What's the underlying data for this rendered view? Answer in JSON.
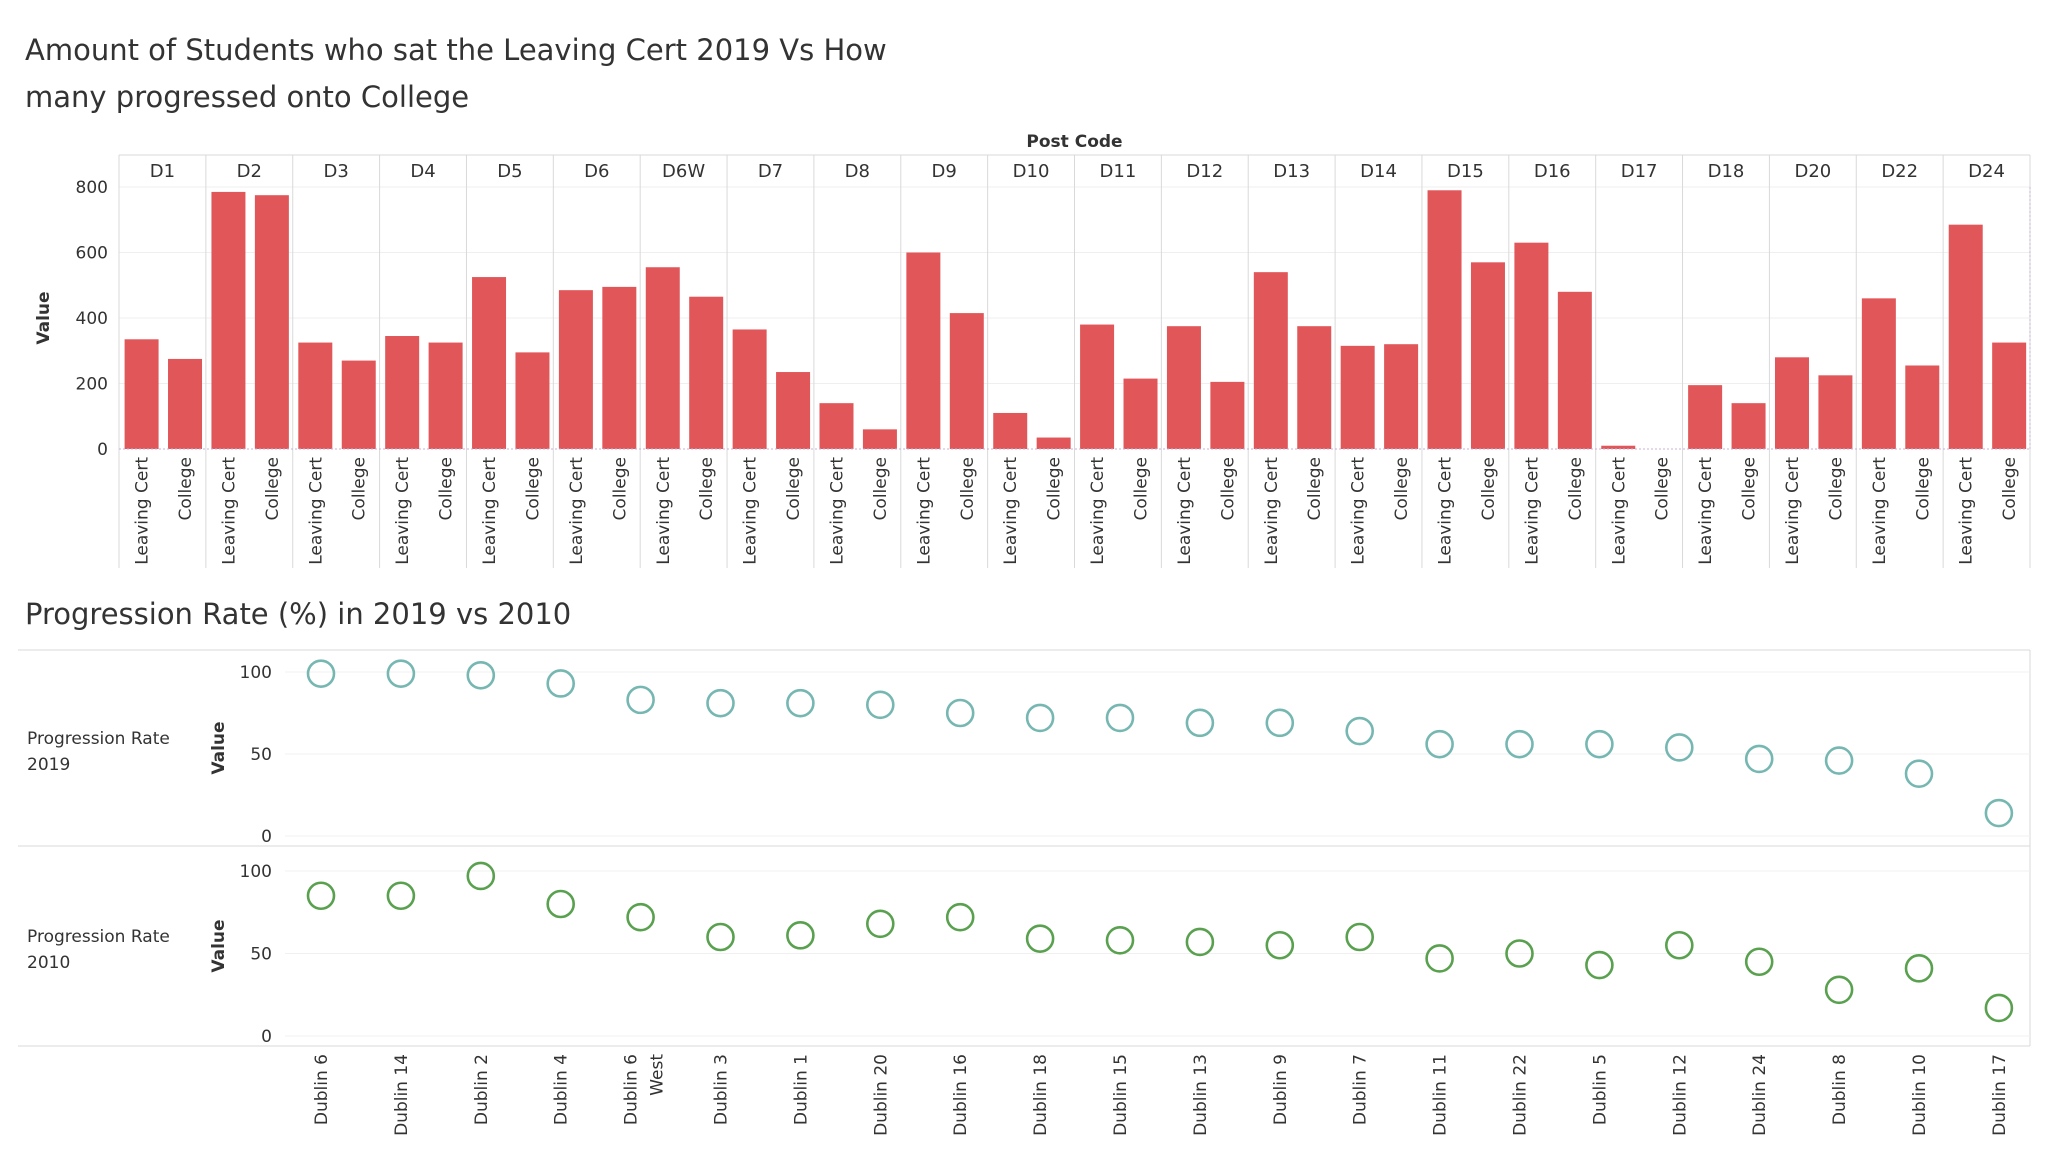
{
  "bar_panel": {
    "title": "Amount of Students who sat the Leaving Cert 2019 Vs How many progressed onto College"
  },
  "scatter_panel": {
    "title": "Progression Rate (%) in 2019 vs 2010"
  },
  "chart_data": [
    {
      "type": "bar",
      "title": "Amount of Students who sat the Leaving Cert 2019 Vs How many progressed onto College",
      "column_header": "Post Code",
      "ylabel": "Value",
      "ylim": [
        0,
        800
      ],
      "yticks": [
        0,
        200,
        400,
        600,
        800
      ],
      "categories": [
        "D1",
        "D2",
        "D3",
        "D4",
        "D5",
        "D6",
        "D6W",
        "D7",
        "D8",
        "D9",
        "D10",
        "D11",
        "D12",
        "D13",
        "D14",
        "D15",
        "D16",
        "D17",
        "D18",
        "D20",
        "D22",
        "D24"
      ],
      "sub_categories": [
        "Leaving Cert",
        "College"
      ],
      "series": [
        {
          "name": "Leaving Cert",
          "values": [
            335,
            785,
            325,
            345,
            525,
            485,
            555,
            365,
            140,
            600,
            110,
            380,
            375,
            540,
            315,
            790,
            630,
            10,
            195,
            280,
            460,
            685
          ]
        },
        {
          "name": "College",
          "values": [
            275,
            775,
            270,
            325,
            295,
            495,
            465,
            235,
            60,
            415,
            35,
            215,
            205,
            375,
            320,
            570,
            480,
            0,
            140,
            225,
            255,
            325
          ]
        }
      ],
      "color": "#e15759",
      "grid": true
    },
    {
      "type": "scatter",
      "title": "Progression Rate (%) in 2019 vs 2010",
      "categories": [
        "Dublin 6",
        "Dublin 14",
        "Dublin 2",
        "Dublin 4",
        "Dublin 6 West",
        "Dublin 3",
        "Dublin 1",
        "Dublin 20",
        "Dublin 16",
        "Dublin 18",
        "Dublin 15",
        "Dublin 13",
        "Dublin 9",
        "Dublin 7",
        "Dublin 11",
        "Dublin 22",
        "Dublin 5",
        "Dublin 12",
        "Dublin 24",
        "Dublin 8",
        "Dublin 10",
        "Dublin 17"
      ],
      "ylabel": "Value",
      "ylim": [
        0,
        100
      ],
      "yticks": [
        0,
        50,
        100
      ],
      "series": [
        {
          "name": "Progression Rate 2019",
          "color": "#76b7b2",
          "values": [
            99,
            99,
            98,
            93,
            83,
            81,
            81,
            80,
            75,
            72,
            72,
            69,
            69,
            64,
            56,
            56,
            56,
            54,
            47,
            46,
            38,
            14
          ]
        },
        {
          "name": "Progression Rate 2010",
          "color": "#59a14f",
          "values": [
            85,
            85,
            97,
            80,
            72,
            60,
            61,
            68,
            72,
            59,
            58,
            57,
            55,
            60,
            47,
            50,
            43,
            55,
            45,
            28,
            41,
            17
          ]
        }
      ],
      "grid": true
    }
  ]
}
